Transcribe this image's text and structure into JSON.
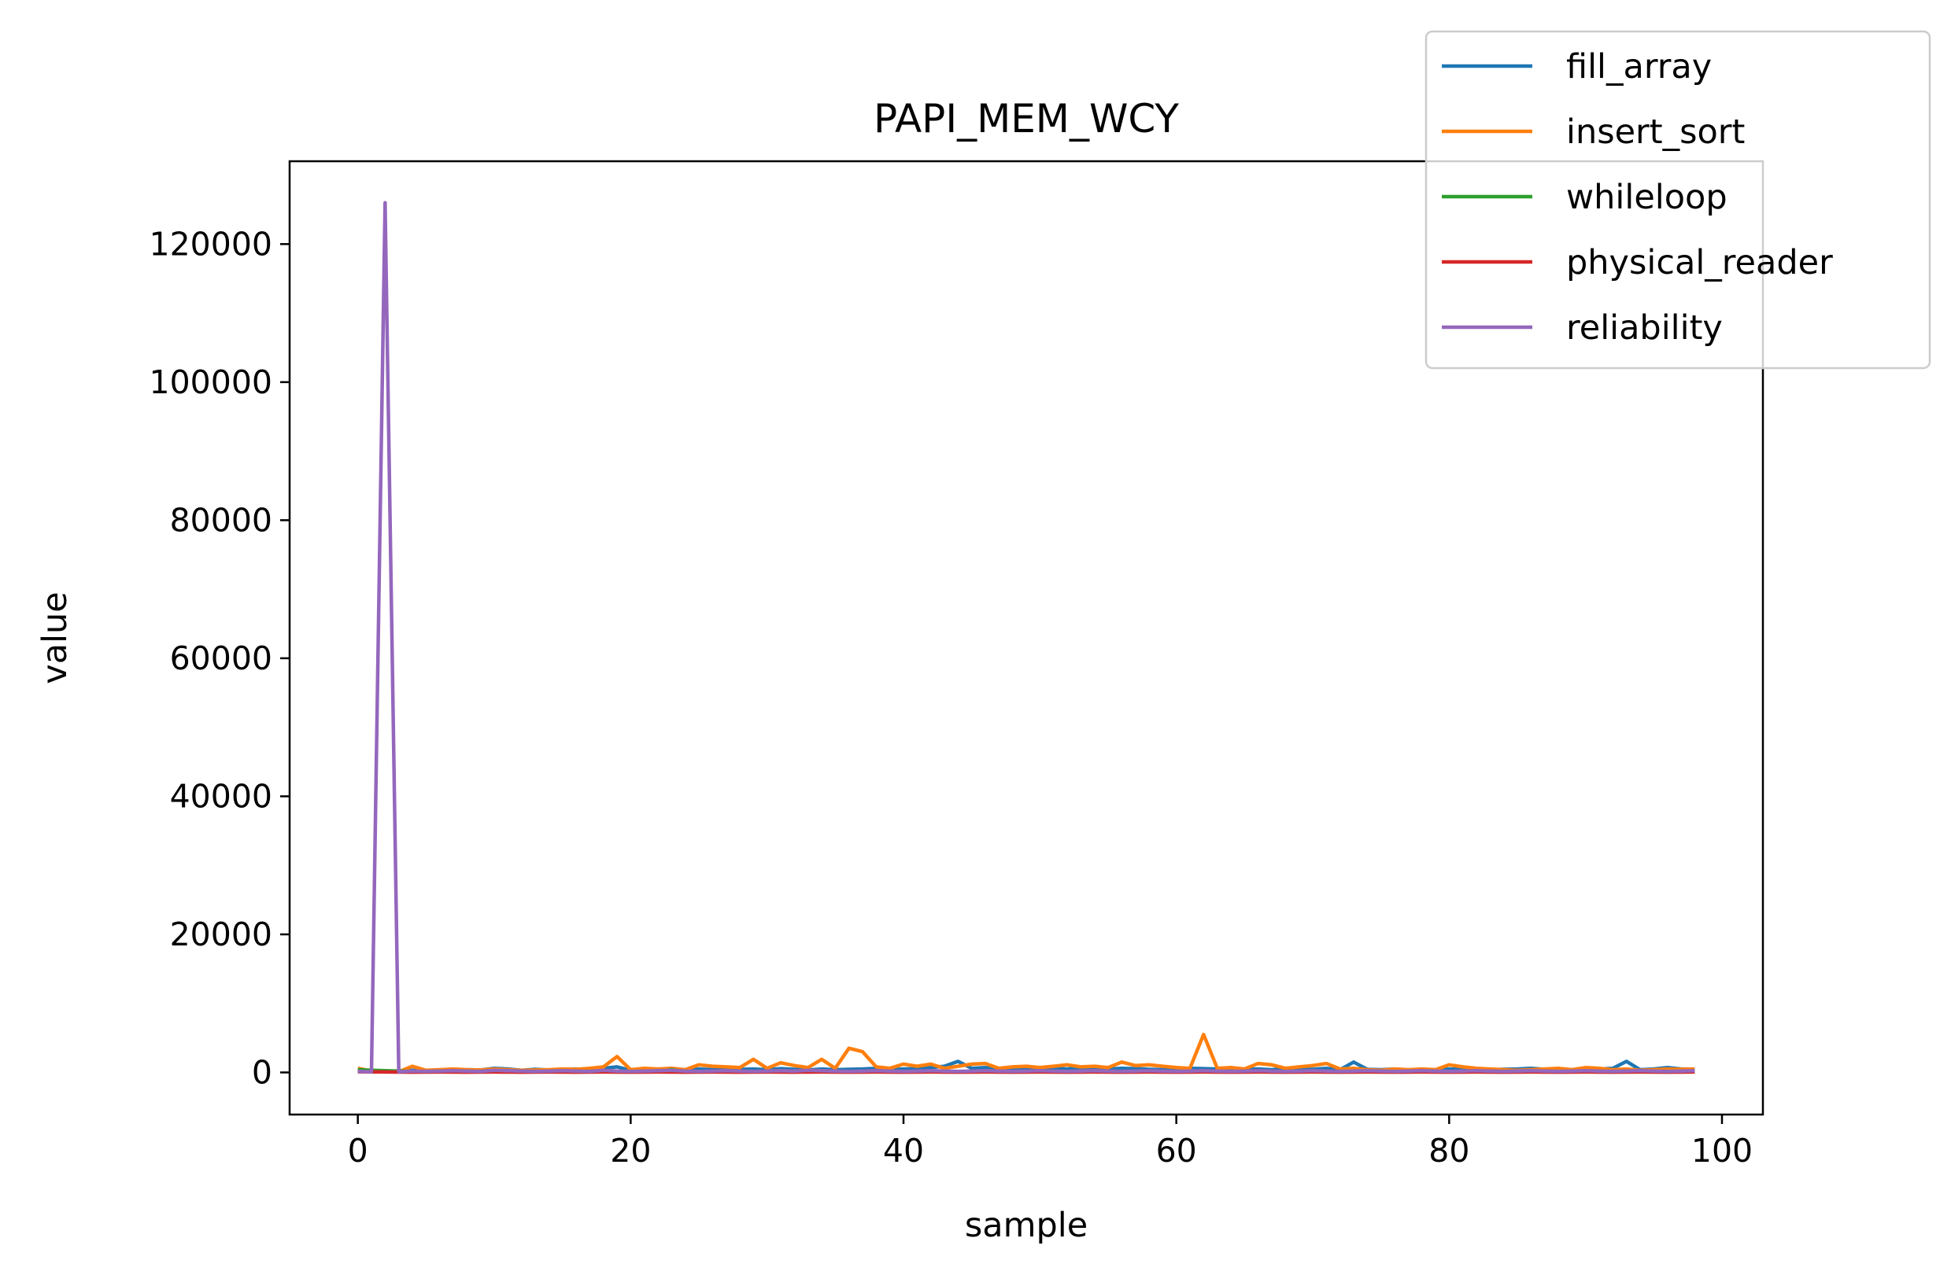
{
  "chart_data": {
    "type": "line",
    "title": "PAPI_MEM_WCY",
    "xlabel": "sample",
    "ylabel": "value",
    "xlim": [
      -5,
      103
    ],
    "ylim": [
      -6100,
      132000
    ],
    "xticks": [
      0,
      20,
      40,
      60,
      80,
      100
    ],
    "yticks": [
      0,
      20000,
      40000,
      60000,
      80000,
      100000,
      120000
    ],
    "grid": false,
    "legend_position": "top-right",
    "x": [
      0,
      1,
      2,
      3,
      4,
      5,
      6,
      7,
      8,
      9,
      10,
      11,
      12,
      13,
      14,
      15,
      16,
      17,
      18,
      19,
      20,
      21,
      22,
      23,
      24,
      25,
      26,
      27,
      28,
      29,
      30,
      31,
      32,
      33,
      34,
      35,
      36,
      37,
      38,
      39,
      40,
      41,
      42,
      43,
      44,
      45,
      46,
      47,
      48,
      49,
      50,
      51,
      52,
      53,
      54,
      55,
      56,
      57,
      58,
      59,
      60,
      61,
      62,
      63,
      64,
      65,
      66,
      67,
      68,
      69,
      70,
      71,
      72,
      73,
      74,
      75,
      76,
      77,
      78,
      79,
      80,
      81,
      82,
      83,
      84,
      85,
      86,
      87,
      88,
      89,
      90,
      91,
      92,
      93,
      94,
      95,
      96,
      97,
      98
    ],
    "series": [
      {
        "name": "fill_array",
        "color": "#1f77b4",
        "values": [
          200,
          150,
          100,
          120,
          300,
          250,
          350,
          300,
          400,
          350,
          600,
          500,
          300,
          450,
          350,
          400,
          500,
          350,
          600,
          800,
          300,
          400,
          450,
          600,
          350,
          500,
          400,
          350,
          450,
          500,
          400,
          550,
          450,
          350,
          500,
          400,
          450,
          500,
          600,
          400,
          500,
          550,
          700,
          900,
          1600,
          600,
          700,
          450,
          500,
          400,
          450,
          600,
          500,
          700,
          650,
          500,
          600,
          550,
          450,
          400,
          500,
          600,
          550,
          500,
          600,
          450,
          500,
          400,
          550,
          500,
          450,
          600,
          400,
          1500,
          450,
          400,
          500,
          350,
          450,
          400,
          500,
          450,
          500,
          400,
          450,
          500,
          600,
          450,
          500,
          400,
          450,
          500,
          600,
          1600,
          400,
          500,
          700,
          500,
          450
        ]
      },
      {
        "name": "insert_sort",
        "color": "#ff7f0e",
        "values": [
          600,
          200,
          150,
          100,
          900,
          300,
          400,
          500,
          400,
          350,
          500,
          400,
          300,
          350,
          400,
          500,
          450,
          600,
          800,
          2300,
          400,
          600,
          500,
          600,
          400,
          1100,
          900,
          800,
          700,
          1900,
          600,
          1400,
          1000,
          700,
          1900,
          600,
          3500,
          3000,
          800,
          600,
          1200,
          900,
          1200,
          600,
          900,
          1200,
          1300,
          600,
          800,
          900,
          700,
          900,
          1100,
          800,
          900,
          700,
          1500,
          1000,
          1100,
          900,
          700,
          600,
          5500,
          600,
          700,
          500,
          1300,
          1100,
          600,
          800,
          1000,
          1300,
          500,
          600,
          400,
          300,
          500,
          400,
          500,
          400,
          1100,
          800,
          600,
          500,
          400,
          300,
          400,
          500,
          600,
          400,
          700,
          600,
          400,
          500,
          300,
          400,
          500,
          450,
          500
        ]
      },
      {
        "name": "whileloop",
        "color": "#2ca02c",
        "values": [
          400,
          300,
          250,
          200,
          150,
          100,
          120,
          100,
          80,
          100,
          90,
          80,
          100,
          120,
          100,
          90,
          80,
          100,
          90,
          80,
          100,
          90,
          80,
          400,
          90,
          80,
          100,
          90,
          80,
          100,
          90,
          80,
          100,
          90,
          80,
          100,
          90,
          80,
          100,
          90,
          80,
          100,
          90,
          80,
          100,
          90,
          80,
          100,
          90,
          80,
          100,
          90,
          80,
          100,
          90,
          80,
          100,
          90,
          80,
          100,
          90,
          80,
          100,
          90,
          80,
          100,
          90,
          80,
          100,
          90,
          80,
          100,
          90,
          80,
          100,
          90,
          80,
          100,
          90,
          80,
          100,
          90,
          80,
          100,
          90,
          80,
          100,
          90,
          80,
          100,
          90,
          80,
          100,
          90,
          80,
          100,
          90,
          80,
          100
        ]
      },
      {
        "name": "physical_reader",
        "color": "#d62728",
        "values": [
          100,
          80,
          60,
          50,
          40,
          50,
          60,
          50,
          40,
          50,
          60,
          50,
          40,
          50,
          60,
          50,
          40,
          50,
          60,
          50,
          40,
          50,
          60,
          50,
          40,
          50,
          60,
          50,
          40,
          50,
          60,
          50,
          40,
          50,
          60,
          50,
          40,
          50,
          60,
          50,
          40,
          50,
          60,
          50,
          40,
          50,
          60,
          50,
          40,
          50,
          60,
          50,
          40,
          50,
          60,
          50,
          40,
          50,
          60,
          50,
          40,
          50,
          60,
          50,
          40,
          50,
          60,
          50,
          40,
          50,
          60,
          50,
          40,
          50,
          60,
          50,
          40,
          50,
          60,
          50,
          40,
          50,
          60,
          50,
          40,
          50,
          60,
          50,
          40,
          50,
          60,
          50,
          40,
          50,
          60,
          50,
          40,
          50,
          60
        ]
      },
      {
        "name": "reliability",
        "color": "#9467bd",
        "values": [
          150,
          100,
          126000,
          100,
          200,
          150,
          200,
          250,
          200,
          150,
          300,
          250,
          200,
          150,
          200,
          250,
          200,
          150,
          300,
          200,
          150,
          200,
          250,
          300,
          200,
          150,
          200,
          250,
          200,
          150,
          200,
          250,
          200,
          300,
          250,
          200,
          150,
          200,
          250,
          200,
          150,
          200,
          250,
          200,
          150,
          200,
          250,
          200,
          150,
          200,
          250,
          200,
          150,
          200,
          250,
          200,
          150,
          200,
          250,
          200,
          150,
          200,
          250,
          200,
          150,
          200,
          250,
          200,
          150,
          200,
          250,
          200,
          150,
          200,
          250,
          200,
          150,
          200,
          250,
          200,
          150,
          200,
          250,
          200,
          150,
          200,
          250,
          200,
          150,
          200,
          250,
          200,
          150,
          200,
          250,
          200,
          150,
          200,
          250
        ]
      }
    ]
  }
}
